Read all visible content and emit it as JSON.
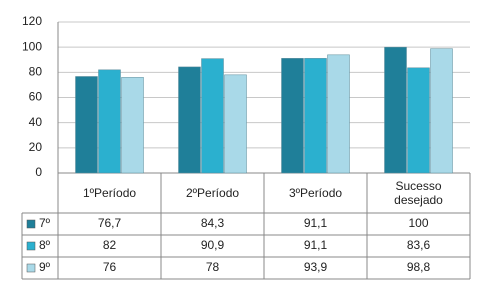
{
  "chart_data": {
    "type": "bar",
    "categories": [
      "1ºPeríodo",
      "2ºPeríodo",
      "3ºPeríodo",
      "Sucesso desejado"
    ],
    "series": [
      {
        "name": "7º",
        "color": "#1f7f99",
        "values": [
          76.7,
          84.3,
          91.1,
          100
        ],
        "value_labels": [
          "76,7",
          "84,3",
          "91,1",
          "100"
        ]
      },
      {
        "name": "8º",
        "color": "#2bb0cf",
        "values": [
          82,
          90.9,
          91.1,
          83.6
        ],
        "value_labels": [
          "82",
          "90,9",
          "91,1",
          "83,6"
        ]
      },
      {
        "name": "9º",
        "color": "#a9d9e8",
        "values": [
          76,
          78,
          93.9,
          98.8
        ],
        "value_labels": [
          "76",
          "78",
          "93,9",
          "98,8"
        ]
      }
    ],
    "ylim": [
      0,
      120
    ],
    "yticks": [
      0,
      20,
      40,
      60,
      80,
      100,
      120
    ],
    "grid": true
  }
}
